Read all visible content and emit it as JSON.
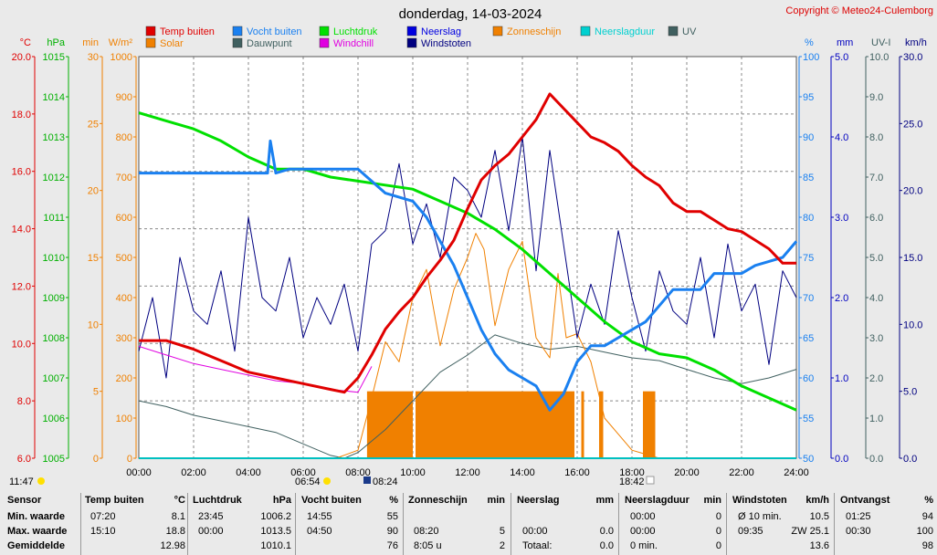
{
  "title": "donderdag, 14-03-2024",
  "copyright": "Copyright © Meteo24-Culemborg",
  "legend": [
    {
      "label": "Temp buiten",
      "color": "#e00000"
    },
    {
      "label": "Solar",
      "color": "#f08000"
    },
    {
      "label": "Vocht buiten",
      "color": "#1a80f0"
    },
    {
      "label": "Dauwpunt",
      "color": "#406060"
    },
    {
      "label": "Luchtdruk",
      "color": "#00e000"
    },
    {
      "label": "Windchill",
      "color": "#e000e0"
    },
    {
      "label": "Neerslag",
      "color": "#0000e0"
    },
    {
      "label": "Windstoten",
      "color": "#000080"
    },
    {
      "label": "Zonneschijn",
      "color": "#f08000"
    },
    {
      "label": "Neerslagduur",
      "color": "#00d0d0"
    },
    {
      "label": "UV",
      "color": "#406060"
    }
  ],
  "axis_units": {
    "temp": "°C",
    "pressure": "hPa",
    "sunmin": "min",
    "solar": "W/m²",
    "humidity": "%",
    "rain": "mm",
    "uv": "UV-I",
    "wind": "km/h"
  },
  "axis_ticks": {
    "temp": [
      "6.0",
      "8.0",
      "10.0",
      "12.0",
      "14.0",
      "16.0",
      "18.0",
      "20.0"
    ],
    "pressure": [
      "1005",
      "1006",
      "1007",
      "1008",
      "1009",
      "1010",
      "1011",
      "1012",
      "1013",
      "1014",
      "1015"
    ],
    "sunmin": [
      "0",
      "5",
      "10",
      "15",
      "20",
      "25",
      "30"
    ],
    "solar": [
      "0",
      "100",
      "200",
      "300",
      "400",
      "500",
      "600",
      "700",
      "800",
      "900",
      "1000"
    ],
    "humidity": [
      "50",
      "55",
      "60",
      "65",
      "70",
      "75",
      "80",
      "85",
      "90",
      "95",
      "100"
    ],
    "rain": [
      "0.0",
      "1.0",
      "2.0",
      "3.0",
      "4.0",
      "5.0"
    ],
    "uv": [
      "0.0",
      "1.0",
      "2.0",
      "3.0",
      "4.0",
      "5.0",
      "6.0",
      "7.0",
      "8.0",
      "9.0",
      "10.0"
    ],
    "wind": [
      "0.0",
      "5.0",
      "10.0",
      "15.0",
      "20.0",
      "25.0",
      "30.0"
    ],
    "time": [
      "00:00",
      "02:00",
      "04:00",
      "06:00",
      "08:00",
      "10:00",
      "12:00",
      "14:00",
      "16:00",
      "18:00",
      "20:00",
      "22:00",
      "24:00"
    ]
  },
  "sun_events": {
    "daylength": "11:47",
    "sunrise": "06:54",
    "sunset": "18:42",
    "noon": "08:24"
  },
  "chart_data": {
    "type": "line",
    "x_axis": "time (hours, 0-24)",
    "series": [
      {
        "name": "Temp buiten",
        "unit": "°C",
        "x": [
          0,
          1,
          2,
          3,
          4,
          5,
          6,
          7,
          7.5,
          8,
          8.5,
          9,
          9.5,
          10,
          10.5,
          11,
          11.5,
          12,
          12.5,
          13,
          13.5,
          14,
          14.5,
          15,
          15.5,
          16,
          16.5,
          17,
          17.5,
          18,
          18.5,
          19,
          19.5,
          20,
          20.5,
          21,
          21.5,
          22,
          22.5,
          23,
          23.5,
          24
        ],
        "y": [
          10.1,
          10.1,
          9.8,
          9.4,
          9.0,
          8.8,
          8.6,
          8.4,
          8.3,
          8.8,
          9.6,
          10.5,
          11.1,
          11.6,
          12.3,
          12.9,
          13.6,
          14.7,
          15.7,
          16.2,
          16.6,
          17.2,
          17.8,
          18.7,
          18.2,
          17.7,
          17.2,
          17.0,
          16.7,
          16.2,
          15.8,
          15.5,
          14.9,
          14.6,
          14.6,
          14.3,
          14.0,
          13.9,
          13.6,
          13.3,
          12.8,
          12.8
        ]
      },
      {
        "name": "Vocht buiten",
        "unit": "%",
        "x": [
          0,
          1,
          2,
          3,
          4,
          4.7,
          4.8,
          5,
          5.5,
          6,
          7,
          8,
          9,
          10,
          10.5,
          11,
          11.5,
          12,
          12.5,
          13,
          13.5,
          14,
          14.5,
          15,
          15.5,
          16,
          16.5,
          17,
          17.5,
          18,
          18.5,
          19,
          19.5,
          20,
          20.5,
          21,
          21.5,
          22,
          22.5,
          23,
          23.5,
          24
        ],
        "y": [
          85.5,
          85.5,
          85.5,
          85.5,
          85.5,
          85.5,
          89.5,
          85.5,
          86.0,
          86.0,
          86.0,
          86.0,
          83.0,
          82.0,
          80.0,
          77.0,
          74.0,
          70.0,
          66.0,
          63.0,
          61.0,
          60.0,
          59.0,
          56.0,
          58.0,
          62.0,
          64.0,
          64.0,
          65.0,
          66.0,
          67.0,
          69.0,
          71.0,
          71.0,
          71.0,
          73.0,
          73.0,
          73.0,
          74.0,
          74.5,
          75.0,
          77.0
        ]
      },
      {
        "name": "Luchtdruk",
        "unit": "hPa",
        "x": [
          0,
          1,
          2,
          3,
          4,
          5,
          6,
          7,
          8,
          9,
          10,
          11,
          12,
          13,
          14,
          15,
          16,
          17,
          18,
          19,
          20,
          21,
          22,
          23,
          24
        ],
        "y": [
          1013.6,
          1013.4,
          1013.2,
          1012.9,
          1012.5,
          1012.2,
          1012.2,
          1012.0,
          1011.9,
          1011.8,
          1011.7,
          1011.4,
          1011.1,
          1010.7,
          1010.2,
          1009.6,
          1009.0,
          1008.4,
          1007.9,
          1007.6,
          1007.5,
          1007.2,
          1006.8,
          1006.5,
          1006.2
        ]
      },
      {
        "name": "Dauwpunt",
        "unit": "°C",
        "x": [
          0,
          1,
          2,
          3,
          4,
          5,
          6,
          7,
          7.5,
          8,
          9,
          10,
          11,
          12,
          13,
          14,
          15,
          16,
          17,
          18,
          19,
          20,
          21,
          22,
          23,
          24
        ],
        "y": [
          8.0,
          7.8,
          7.5,
          7.3,
          7.1,
          6.9,
          6.5,
          6.1,
          6.0,
          6.2,
          7.0,
          8.0,
          9.0,
          9.6,
          10.3,
          10.0,
          9.8,
          9.9,
          9.7,
          9.5,
          9.4,
          9.1,
          8.8,
          8.6,
          8.8,
          9.1
        ]
      },
      {
        "name": "Windchill",
        "unit": "°C",
        "x": [
          0,
          1,
          2,
          3,
          4,
          5,
          6,
          7,
          8,
          8.5
        ],
        "y": [
          9.9,
          9.6,
          9.3,
          9.1,
          8.9,
          8.7,
          8.6,
          8.4,
          8.3,
          9.2
        ]
      },
      {
        "name": "Solar",
        "unit": "W/m²",
        "x": [
          7.2,
          8,
          8.5,
          9,
          9.5,
          10,
          10.5,
          11,
          11.5,
          12,
          12.3,
          12.6,
          13,
          13.5,
          14,
          14.5,
          15,
          15.3,
          15.6,
          16,
          16.5,
          17,
          17.5,
          18,
          18.5,
          19
        ],
        "y": [
          0,
          20,
          150,
          290,
          240,
          400,
          470,
          280,
          420,
          500,
          560,
          520,
          330,
          470,
          540,
          300,
          250,
          460,
          300,
          310,
          240,
          100,
          60,
          20,
          10,
          0
        ]
      },
      {
        "name": "Windstoten",
        "unit": "km/h",
        "x": [
          0,
          0.5,
          1,
          1.5,
          2,
          2.5,
          3,
          3.5,
          4,
          4.5,
          5,
          5.5,
          6,
          6.5,
          7,
          7.5,
          8,
          8.5,
          9,
          9.5,
          10,
          10.5,
          11,
          11.5,
          12,
          12.5,
          13,
          13.5,
          14,
          14.5,
          15,
          15.5,
          16,
          16.5,
          17,
          17.5,
          18,
          18.5,
          19,
          19.5,
          20,
          20.5,
          21,
          21.5,
          22,
          22.5,
          23,
          23.5,
          24
        ],
        "y": [
          8.0,
          12.0,
          6.0,
          15.0,
          11.0,
          10.0,
          14.0,
          8.0,
          18.0,
          12.0,
          11.0,
          15.0,
          9.0,
          12.0,
          10.0,
          13.0,
          8.0,
          16.0,
          17.0,
          22.0,
          16.0,
          19.0,
          15.0,
          21.0,
          20.0,
          18.0,
          23.0,
          17.0,
          24.0,
          14.0,
          23.0,
          16.0,
          9.0,
          13.0,
          10.0,
          17.0,
          12.0,
          8.0,
          14.0,
          11.0,
          10.0,
          15.0,
          9.0,
          16.0,
          11.0,
          13.0,
          7.0,
          14.0,
          12.0
        ]
      },
      {
        "name": "Zonneschijn",
        "unit": "min",
        "x_intervals": [
          [
            8.33,
            10.0
          ],
          [
            10.1,
            15.9
          ],
          [
            16.15,
            16.25
          ],
          [
            16.8,
            16.95
          ],
          [
            18.4,
            18.85
          ]
        ],
        "y": [
          5,
          5,
          5,
          5,
          5
        ]
      },
      {
        "name": "Neerslag",
        "unit": "mm",
        "x": [
          0,
          24
        ],
        "y": [
          0.0,
          0.0
        ]
      },
      {
        "name": "Neerslagduur",
        "unit": "min",
        "x": [
          0,
          24
        ],
        "y": [
          0,
          0
        ]
      },
      {
        "name": "UV",
        "unit": "UV-I",
        "x": [
          0,
          24
        ],
        "y": [
          0.0,
          0.0
        ]
      }
    ],
    "ranges": {
      "temp": [
        6,
        20
      ],
      "pressure": [
        1005,
        1015
      ],
      "sunmin": [
        0,
        30
      ],
      "solar": [
        0,
        1000
      ],
      "humidity": [
        50,
        100
      ],
      "rain": [
        0,
        5
      ],
      "uv": [
        0,
        10
      ],
      "wind": [
        0,
        30
      ],
      "time": [
        0,
        24
      ]
    },
    "grid": true
  },
  "summary": {
    "headers": {
      "sensor": "Sensor",
      "temp": "Temp buiten",
      "temp_unit": "°C",
      "pressure": "Luchtdruk",
      "pressure_unit": "hPa",
      "humidity": "Vocht buiten",
      "humidity_unit": "%",
      "sun": "Zonneschijn",
      "sun_unit": "min",
      "rain": "Neerslag",
      "rain_unit": "mm",
      "raindur": "Neerslagduur",
      "raindur_unit": "min",
      "wind": "Windstoten",
      "wind_unit": "km/h",
      "dew": "Ontvangst",
      "dew_unit": "%"
    },
    "rows": [
      {
        "label": "Min. waarde",
        "temp_time": "07:20",
        "temp_val": "8.1",
        "pressure_time": "23:45",
        "pressure_val": "1006.2",
        "humidity_time": "14:55",
        "humidity_val": "55",
        "sun_time": "",
        "sun_val": "",
        "rain_time": "",
        "rain_val": "",
        "raindur_time": "00:00",
        "raindur_val": "0",
        "wind_time": "Ø 10 min.",
        "wind_val": "10.5",
        "recv_time": "01:25",
        "recv_val": "94"
      },
      {
        "label": "Max. waarde",
        "temp_time": "15:10",
        "temp_val": "18.8",
        "pressure_time": "00:00",
        "pressure_val": "1013.5",
        "humidity_time": "04:50",
        "humidity_val": "90",
        "sun_time": "08:20",
        "sun_val": "5",
        "rain_time": "00:00",
        "rain_val": "0.0",
        "raindur_time": "00:00",
        "raindur_val": "0",
        "wind_time": "09:35",
        "wind_val": "ZW 25.1",
        "recv_time": "00:30",
        "recv_val": "100"
      },
      {
        "label": "Gemiddelde",
        "temp_time": "",
        "temp_val": "12.98",
        "pressure_time": "",
        "pressure_val": "1010.1",
        "humidity_time": "",
        "humidity_val": "76",
        "sun_time": "8:05 u",
        "sun_val": "2",
        "rain_time": "Totaal:",
        "rain_val": "0.0",
        "raindur_time": "0 min.",
        "raindur_val": "0",
        "wind_time": "",
        "wind_val": "13.6",
        "recv_time": "",
        "recv_val": "98"
      }
    ]
  }
}
